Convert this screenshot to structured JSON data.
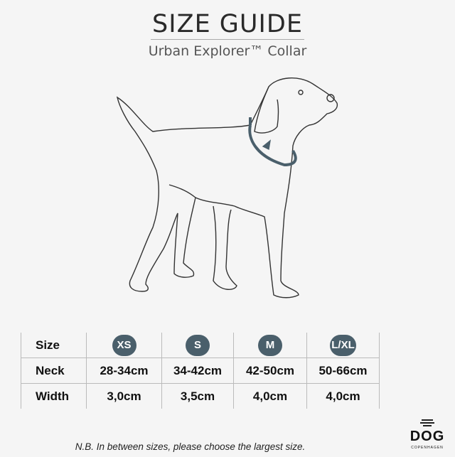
{
  "header": {
    "title": "SIZE GUIDE",
    "subtitle": "Urban Explorer™ Collar"
  },
  "colors": {
    "badge": "#4a5f6b",
    "collar": "#4a5f6b",
    "background": "#f5f5f5"
  },
  "table": {
    "header_label": "Size",
    "sizes": [
      "XS",
      "S",
      "M",
      "L/XL"
    ],
    "rows": [
      {
        "label": "Neck",
        "values": [
          "28-34cm",
          "34-42cm",
          "42-50cm",
          "50-66cm"
        ]
      },
      {
        "label": "Width",
        "values": [
          "3,0cm",
          "3,5cm",
          "4,0cm",
          "4,0cm"
        ]
      }
    ]
  },
  "note": "N.B. In between sizes, please choose the largest size.",
  "logo": {
    "word": "DOG",
    "sub": "COPENHAGEN"
  }
}
